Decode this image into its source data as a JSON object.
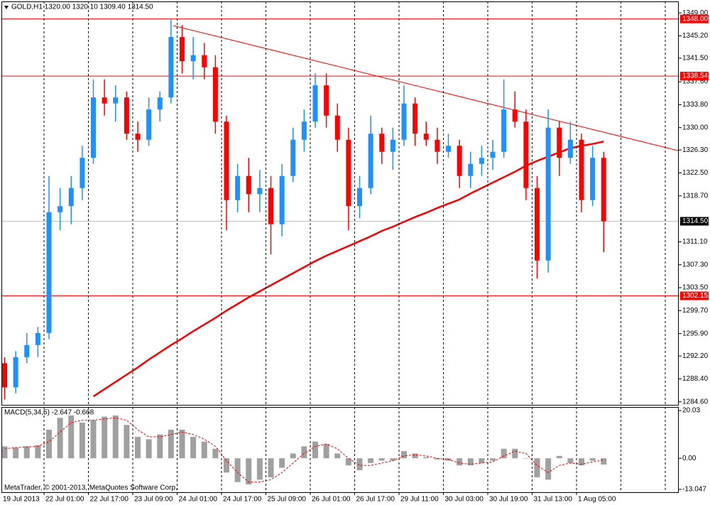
{
  "chart_data": {
    "type": "candlestick",
    "title": "GOLD,H1  1320.00 1320.10 1309.40 1314.50",
    "footer": "MetaTrader, © 2001-2013, MetaQuotes Software Corp.",
    "categories": [
      "19 Jul 2013",
      null,
      null,
      null,
      "22 Jul 01:00",
      null,
      null,
      null,
      "22 Jul 17:00",
      null,
      null,
      null,
      "23 Jul 09:00",
      null,
      null,
      null,
      "24 Jul 01:00",
      null,
      null,
      null,
      "24 Jul 17:00",
      null,
      null,
      null,
      "25 Jul 09:00",
      null,
      null,
      null,
      "26 Jul 01:00",
      null,
      null,
      null,
      "26 Jul 17:00",
      null,
      null,
      null,
      "29 Jul 11:00",
      null,
      null,
      null,
      "30 Jul 03:00",
      null,
      null,
      null,
      "30 Jul 19:00",
      null,
      null,
      null,
      "31 Jul 13:00",
      null,
      null,
      null,
      "1 Aug 05:00",
      null,
      null
    ],
    "open": [
      1291,
      1287,
      1292,
      1294,
      1296,
      1316,
      1317,
      1320,
      1325,
      1335,
      1334,
      1335,
      1329,
      1328,
      1333,
      1335,
      1345,
      1341,
      1342,
      1340,
      1331,
      1318,
      1322,
      1319,
      1320,
      1314,
      1322,
      1328,
      1331,
      1337,
      1332,
      1328,
      1317,
      1320,
      1329,
      1326,
      1328,
      1334,
      1329,
      1328,
      1326,
      1327,
      1322,
      1324,
      1325,
      1326,
      1333,
      1331,
      1320,
      1308,
      1330,
      1325,
      1328,
      1318,
      1325
    ],
    "high": [
      1292,
      1293,
      1296,
      1297,
      1322,
      1320,
      1322,
      1327,
      1338,
      1338,
      1337,
      1336,
      1331,
      1335,
      1336,
      1348,
      1347,
      1345,
      1344,
      1342,
      1332,
      1324,
      1325,
      1323,
      1322,
      1324,
      1330,
      1333,
      1339,
      1339,
      1334,
      1330,
      1322,
      1332,
      1330,
      1330,
      1337,
      1335,
      1331,
      1330,
      1329,
      1328,
      1326,
      1327,
      1328,
      1338,
      1336,
      1333,
      1322,
      1333,
      1331,
      1331,
      1329,
      1327,
      1326
    ],
    "low": [
      1285,
      1286,
      1291,
      1292,
      1295,
      1313,
      1314,
      1318,
      1324,
      1332,
      1331,
      1328,
      1326,
      1327,
      1331,
      1334,
      1339,
      1338,
      1338,
      1329,
      1313,
      1316,
      1316,
      1316,
      1309,
      1312,
      1321,
      1326,
      1330,
      1330,
      1326,
      1313,
      1315,
      1319,
      1324,
      1323,
      1327,
      1327,
      1327,
      1324,
      1325,
      1320,
      1320,
      1322,
      1323,
      1325,
      1330,
      1318,
      1305,
      1306,
      1322,
      1324,
      1316,
      1317,
      1309.4
    ],
    "close": [
      1287,
      1292,
      1294,
      1296,
      1316,
      1317,
      1320,
      1325,
      1335,
      1334,
      1335,
      1329,
      1328,
      1333,
      1335,
      1345,
      1341,
      1342,
      1340,
      1331,
      1318,
      1322,
      1319,
      1320,
      1314,
      1322,
      1328,
      1331,
      1337,
      1332,
      1328,
      1317,
      1320,
      1329,
      1326,
      1328,
      1334,
      1329,
      1328,
      1326,
      1327,
      1322,
      1324,
      1325,
      1326,
      1333,
      1331,
      1320,
      1308,
      1330,
      1325,
      1328,
      1318,
      1325,
      1314.5
    ],
    "bull_color": "#1e90ff",
    "bear_color": "#ff0000",
    "moving_average": {
      "color": "#ff0000",
      "values": [
        null,
        null,
        null,
        null,
        null,
        null,
        null,
        null,
        1285.5,
        1286.7,
        1287.9,
        1289.1,
        1290.3,
        1291.6,
        1292.8,
        1294.0,
        1295.1,
        1296.3,
        1297.4,
        1298.5,
        1299.7,
        1300.8,
        1301.9,
        1302.9,
        1303.9,
        1304.9,
        1305.9,
        1306.9,
        1307.9,
        1308.8,
        1309.6,
        1310.4,
        1311.2,
        1312.0,
        1312.9,
        1313.6,
        1314.4,
        1315.2,
        1315.9,
        1316.7,
        1317.4,
        1318.1,
        1319.1,
        1320.0,
        1320.9,
        1321.8,
        1322.7,
        1323.7,
        1324.5,
        1325.2,
        1325.9,
        1326.6,
        1327.0,
        1327.3,
        1327.7
      ]
    },
    "trendline": {
      "color": "#ff0000",
      "start": [
        15.2,
        1346.9
      ],
      "end": [
        60.7,
        1326.2
      ]
    },
    "levels": [
      {
        "value": 1348,
        "label": "1348.00"
      },
      {
        "value": 1338.54,
        "label": "1338.54"
      },
      {
        "value": 1302.15,
        "label": "1302.15"
      }
    ],
    "level_color": "#ff0000",
    "last_price": {
      "value": 1314.5,
      "label": "1314.50"
    },
    "ylim": [
      1284.1,
      1350.9
    ],
    "yticks": [
      {
        "value": 1349,
        "label": "1349.00"
      },
      {
        "value": 1345.2,
        "label": "1345.20"
      },
      {
        "value": 1341.5,
        "label": "1341.50"
      },
      {
        "value": 1337.6,
        "label": "1337.60"
      },
      {
        "value": 1333.8,
        "label": "1333.80"
      },
      {
        "value": 1330,
        "label": "1330.00"
      },
      {
        "value": 1326.3,
        "label": "1326.30"
      },
      {
        "value": 1322.5,
        "label": "1322.50"
      },
      {
        "value": 1318.7,
        "label": "1318.70"
      },
      {
        "value": 1311.1,
        "label": "1311.10"
      },
      {
        "value": 1307.3,
        "label": "1307.30"
      },
      {
        "value": 1303.5,
        "label": "1303.50"
      },
      {
        "value": 1299.7,
        "label": "1299.70"
      },
      {
        "value": 1295.9,
        "label": "1295.90"
      },
      {
        "value": 1292.2,
        "label": "1292.20"
      },
      {
        "value": 1288.4,
        "label": "1288.40"
      },
      {
        "value": 1284.6,
        "label": "1284.60"
      }
    ],
    "macd": {
      "title": "MACD(5,34,5) -2.647 -0.668",
      "histogram_color": "#a0a0a0",
      "signal_color": "#ff0000",
      "histogram": [
        5,
        4.5,
        5,
        5.5,
        12,
        17,
        18,
        15,
        16,
        17.5,
        18,
        14,
        9,
        8,
        10,
        12,
        12,
        9,
        7,
        4,
        -6,
        -10,
        -11,
        -9,
        -8,
        -4,
        2,
        5,
        7,
        6,
        2,
        -3,
        -5,
        -2,
        -1,
        -1,
        3,
        2,
        0.5,
        -0.5,
        -1,
        -3,
        -3,
        -2,
        -1,
        4,
        4,
        0,
        -8,
        -9,
        1,
        -2,
        -3,
        -1,
        -2.647
      ],
      "signal": [
        4,
        4.5,
        4.8,
        5,
        7,
        11,
        15,
        16,
        16,
        16.5,
        17,
        16,
        12,
        9,
        9,
        10,
        11,
        10,
        8,
        5,
        -1,
        -6,
        -10,
        -10,
        -9,
        -6,
        -2,
        2,
        5,
        6,
        4,
        0,
        -3,
        -3,
        -2,
        -1,
        1,
        1.5,
        1,
        0,
        -0.5,
        -2,
        -2.5,
        -2,
        -1.5,
        1,
        3,
        2,
        -3,
        -6,
        -3,
        -2,
        -2.5,
        -1.5,
        -0.668
      ],
      "ylim": [
        -14.26,
        21.55
      ],
      "yticks": [
        20.03,
        {
          "value": 0,
          "label": "0.00"
        },
        -13.047
      ]
    }
  }
}
